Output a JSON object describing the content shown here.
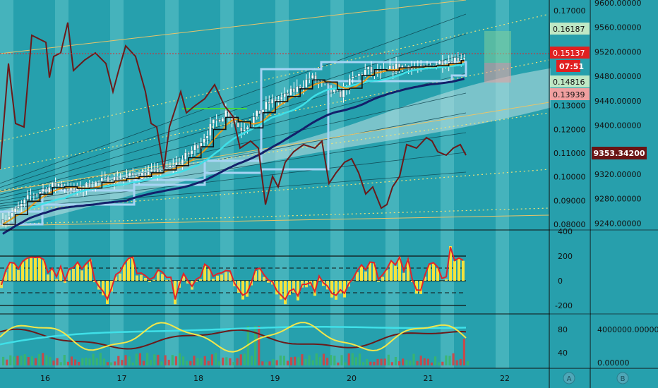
{
  "colors": {
    "background": "#26a0ad",
    "stripe": "#5ec3c8",
    "axis_panel": "#2a9fab",
    "candle_up": "#ffffff",
    "candle_down": "#ffffff",
    "step_line": "#111111",
    "cyan_line": "#3fe0e8",
    "navy_line": "#13206a",
    "orange_line": "#e89b1c",
    "dark_red_line": "#6a1a1a",
    "light_blue_box": "#a7d4f4",
    "green_line": "#43d843",
    "yellow_dotted": "#f1e278",
    "cloud": "#bfe0e2",
    "histogram_yellow": "#f5e33c",
    "histogram_red": "#e0242a",
    "cci_red": "#e0242a",
    "stoch_yellow": "#f3e64a",
    "stoch_dark": "#6a1a1a",
    "rsi_cyan": "#3fe0e8",
    "volume_green": "#3bb56a",
    "volume_red": "#d64040"
  },
  "axis_left": {
    "ticks": [
      "0.17000",
      "0.16187",
      "0.15137",
      "0.14816",
      "0.13939",
      "0.13000",
      "0.12000",
      "0.11000",
      "0.10000",
      "0.09000",
      "0.08000"
    ],
    "tick_values": [
      0.17,
      0.16187,
      0.15137,
      0.14816,
      0.13939,
      0.13,
      0.12,
      0.11,
      0.1,
      0.09,
      0.08
    ]
  },
  "axis_right": {
    "ticks": [
      "9600.00000",
      "9560.00000",
      "9520.00000",
      "9480.00000",
      "9440.00000",
      "9400.00000",
      "9360.00000",
      "9320.00000",
      "9280.00000",
      "9240.00000"
    ],
    "current_value": "9353.34200"
  },
  "price_badges": [
    {
      "label": "0.16187",
      "value": 0.16187,
      "style": "green"
    },
    {
      "label": "0.15137",
      "value": 0.15137,
      "style": "red"
    },
    {
      "label": "07:51",
      "value": 0.14816,
      "style": "red-timer"
    },
    {
      "label": "0.14816",
      "value": 0.14816,
      "style": "green"
    },
    {
      "label": "0.13939",
      "value": 0.13939,
      "style": "pink"
    }
  ],
  "cci_panel": {
    "ticks": [
      "400",
      "200",
      "0",
      "-200"
    ],
    "tick_values": [
      400,
      200,
      0,
      -200
    ]
  },
  "stoch_panel": {
    "ticks_left": [
      "80",
      "40"
    ],
    "ticks_right": [
      "4000000.00000",
      "0.00000"
    ]
  },
  "x_axis": {
    "labels": [
      "16",
      "17",
      "18",
      "19",
      "20",
      "21",
      "22"
    ]
  },
  "axis_buttons": {
    "a": "A",
    "b": "B"
  },
  "chart_data": {
    "type": "candlestick",
    "x": [
      "16",
      "17",
      "18",
      "19",
      "20",
      "21",
      "22"
    ],
    "close_path": [
      0.082,
      0.086,
      0.092,
      0.095,
      0.097,
      0.094,
      0.096,
      0.098,
      0.099,
      0.1,
      0.101,
      0.102,
      0.104,
      0.108,
      0.114,
      0.122,
      0.128,
      0.12,
      0.125,
      0.131,
      0.133,
      0.137,
      0.142,
      0.138,
      0.134,
      0.141,
      0.145,
      0.143,
      0.146,
      0.147,
      0.145,
      0.148,
      0.149,
      0.151
    ],
    "last_price": 0.15137,
    "levels": [
      0.16187,
      0.15137,
      0.14816,
      0.13939
    ],
    "secondary_last": 9353.342,
    "cci_last": 280,
    "ylim": [
      0.076,
      0.175
    ]
  }
}
